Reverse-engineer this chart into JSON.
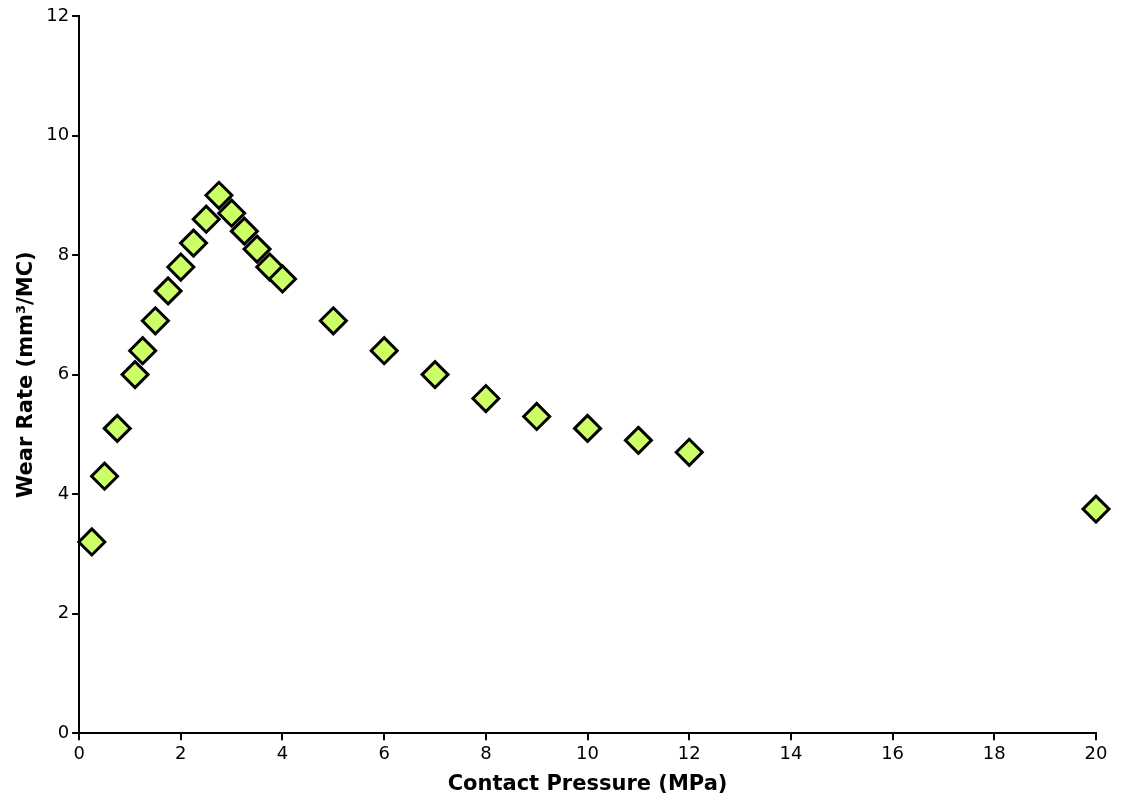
{
  "chart_data": {
    "type": "scatter",
    "xlabel": "Contact Pressure (MPa)",
    "ylabel": "Wear Rate (mm³/MC)",
    "x": [
      0.25,
      0.5,
      0.75,
      1.1,
      1.25,
      1.5,
      1.75,
      2.0,
      2.25,
      2.5,
      2.75,
      3.0,
      3.25,
      3.5,
      3.75,
      4,
      5,
      6,
      7,
      8,
      9,
      10,
      11,
      12,
      20
    ],
    "series": [
      {
        "color": "#ccff66",
        "values": [
          3.2,
          4.3,
          5.1,
          6.0,
          6.4,
          6.9,
          7.4,
          7.8,
          8.2,
          8.6,
          9.0,
          8.7,
          8.4,
          8.1,
          7.8,
          7.6,
          6.9,
          6.4,
          6.0,
          5.6,
          5.3,
          5.1,
          4.9,
          4.7,
          3.75
        ]
      }
    ],
    "xlim": [
      0,
      20
    ],
    "xticks": [
      0,
      2,
      4,
      6,
      8,
      10,
      12,
      14,
      16,
      18,
      20
    ],
    "ylim": [
      0,
      12
    ],
    "yticks": [
      0,
      2,
      4,
      6,
      8,
      10,
      12
    ],
    "grid": false,
    "legend": false,
    "marker": "diamond"
  }
}
